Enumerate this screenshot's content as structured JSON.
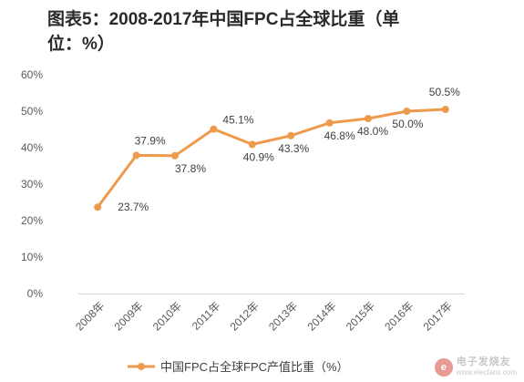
{
  "title": "图表5：2008-2017年中国FPC占全球比重（单位：%）",
  "chart_data": {
    "type": "line",
    "categories": [
      "2008年",
      "2009年",
      "2010年",
      "2011年",
      "2012年",
      "2013年",
      "2014年",
      "2015年",
      "2016年",
      "2017年"
    ],
    "series": [
      {
        "name": "中国FPC占全球FPC产值比重（%）",
        "values": [
          23.7,
          37.9,
          37.8,
          45.1,
          40.9,
          43.3,
          46.8,
          48.0,
          50.0,
          50.5
        ],
        "labels": [
          "23.7%",
          "37.9%",
          "37.8%",
          "45.1%",
          "40.9%",
          "43.3%",
          "46.8%",
          "48.0%",
          "50.0%",
          "50.5%"
        ]
      }
    ],
    "ylim": [
      0,
      60
    ],
    "yticks": [
      0,
      10,
      20,
      30,
      40,
      50,
      60
    ],
    "ytick_labels": [
      "0%",
      "10%",
      "20%",
      "30%",
      "40%",
      "50%",
      "60%"
    ],
    "grid": false,
    "legend_position": "bottom",
    "color": "#ee9a4d"
  },
  "watermark": {
    "logo": "e",
    "name": "电子发烧友",
    "url": "www.elecfans.com"
  }
}
